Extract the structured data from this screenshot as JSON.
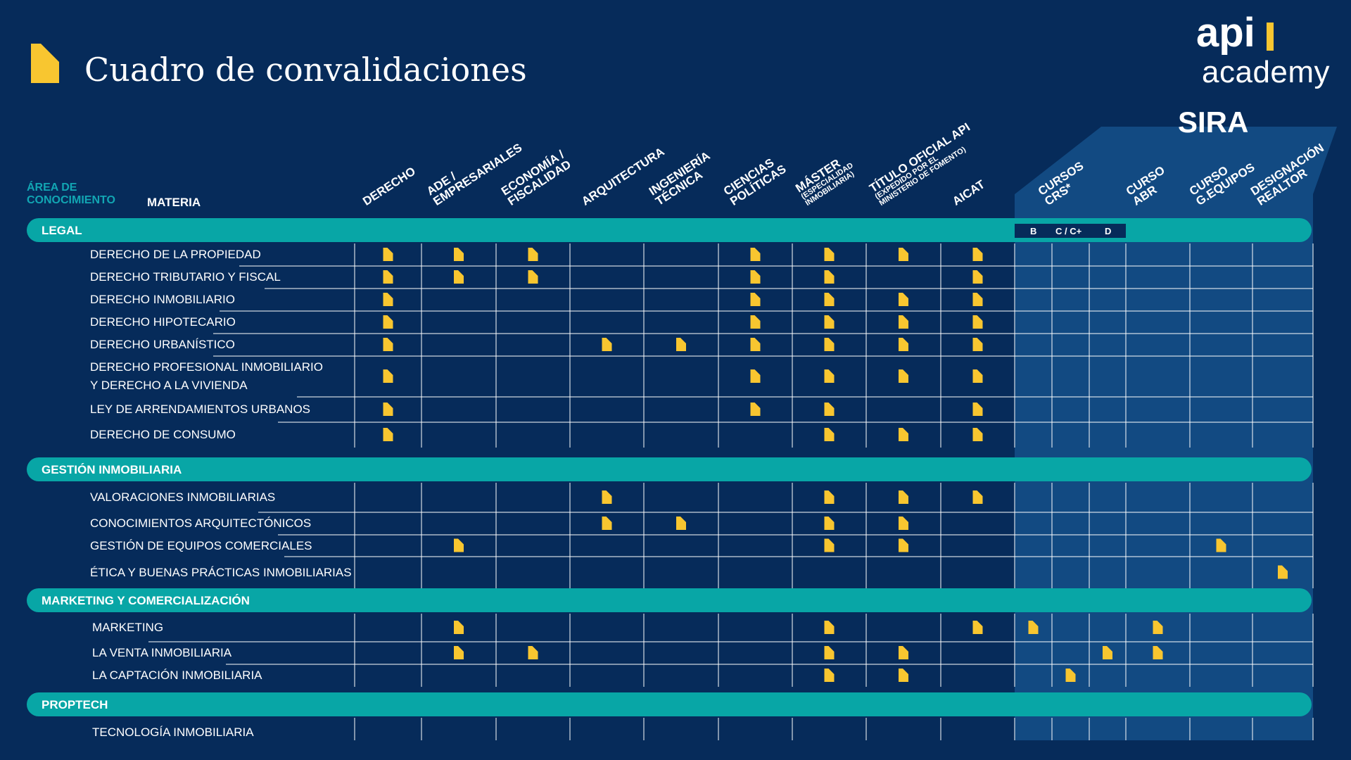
{
  "header": {
    "title": "Cuadro de convalidaciones",
    "logo_brand": "api",
    "logo_sub": "academy"
  },
  "table_header": {
    "area_label_line1": "ÁREA DE",
    "area_label_line2": "CONOCIMIENTO",
    "materia_label": "MATERIA",
    "sira_title": "SIRA",
    "sira_sublabels": [
      "B",
      "C / C+",
      "D"
    ]
  },
  "columns": [
    {
      "key": "derecho",
      "lines": [
        "DERECHO"
      ],
      "sub": []
    },
    {
      "key": "ade",
      "lines": [
        "ADE /",
        "EMPRESARIALES"
      ],
      "sub": []
    },
    {
      "key": "economia",
      "lines": [
        "ECONOMÍA /",
        "FISCALIDAD"
      ],
      "sub": []
    },
    {
      "key": "arquitectura",
      "lines": [
        "ARQUITECTURA"
      ],
      "sub": []
    },
    {
      "key": "ingenieria",
      "lines": [
        "INGENIERÍA",
        "TÉCNICA"
      ],
      "sub": []
    },
    {
      "key": "ciencias",
      "lines": [
        "CIENCIAS",
        "POLÍTICAS"
      ],
      "sub": []
    },
    {
      "key": "master",
      "lines": [
        "MÁSTER"
      ],
      "sub": [
        "(ESPECIALIDAD",
        "INMOBILIARIA)"
      ]
    },
    {
      "key": "titulo",
      "lines": [
        "TÍTULO OFICIAL API"
      ],
      "sub": [
        "(EXPEDIDO POR EL",
        "MINISTERIO DE FOMENTO)"
      ]
    },
    {
      "key": "aicat",
      "lines": [
        "AICAT"
      ],
      "sub": []
    },
    {
      "key": "crs",
      "lines": [
        "CURSOS",
        "CRS*"
      ],
      "sub": []
    },
    {
      "key": "abr",
      "lines": [
        "CURSO",
        "ABR"
      ],
      "sub": []
    },
    {
      "key": "gequipos",
      "lines": [
        "CURSO",
        "G.EQUIPOS"
      ],
      "sub": []
    },
    {
      "key": "realtor",
      "lines": [
        "DESIGNACIÓN",
        "REALTOR"
      ],
      "sub": []
    }
  ],
  "sections": [
    {
      "name": "LEGAL",
      "rows": [
        {
          "label": [
            "DERECHO DE LA PROPIEDAD"
          ],
          "marks": [
            "derecho",
            "ade",
            "economia",
            "ciencias",
            "master",
            "titulo",
            "aicat"
          ]
        },
        {
          "label": [
            "DERECHO TRIBUTARIO Y FISCAL"
          ],
          "marks": [
            "derecho",
            "ade",
            "economia",
            "ciencias",
            "master",
            "aicat"
          ]
        },
        {
          "label": [
            "DERECHO INMOBILIARIO"
          ],
          "marks": [
            "derecho",
            "ciencias",
            "master",
            "titulo",
            "aicat"
          ]
        },
        {
          "label": [
            "DERECHO HIPOTECARIO"
          ],
          "marks": [
            "derecho",
            "ciencias",
            "master",
            "titulo",
            "aicat"
          ]
        },
        {
          "label": [
            "DERECHO URBANÍSTICO"
          ],
          "marks": [
            "derecho",
            "arquitectura",
            "ingenieria",
            "ciencias",
            "master",
            "titulo",
            "aicat"
          ]
        },
        {
          "label": [
            "DERECHO PROFESIONAL INMOBILIARIO",
            "Y DERECHO A LA VIVIENDA"
          ],
          "marks": [
            "derecho",
            "ciencias",
            "master",
            "titulo",
            "aicat"
          ]
        },
        {
          "label": [
            "LEY DE ARRENDAMIENTOS URBANOS"
          ],
          "marks": [
            "derecho",
            "ciencias",
            "master",
            "aicat"
          ]
        },
        {
          "label": [
            "DERECHO DE CONSUMO"
          ],
          "marks": [
            "derecho",
            "master",
            "titulo",
            "aicat"
          ]
        }
      ]
    },
    {
      "name": "GESTIÓN INMOBILIARIA",
      "rows": [
        {
          "label": [
            "VALORACIONES INMOBILIARIAS"
          ],
          "marks": [
            "arquitectura",
            "master",
            "titulo",
            "aicat"
          ]
        },
        {
          "label": [
            "CONOCIMIENTOS ARQUITECTÓNICOS"
          ],
          "marks": [
            "arquitectura",
            "ingenieria",
            "master",
            "titulo"
          ]
        },
        {
          "label": [
            "GESTIÓN DE EQUIPOS COMERCIALES"
          ],
          "marks": [
            "ade",
            "master",
            "titulo",
            "gequipos"
          ]
        },
        {
          "label": [
            "ÉTICA Y BUENAS PRÁCTICAS INMOBILIARIAS"
          ],
          "marks": [
            "realtor"
          ]
        }
      ]
    },
    {
      "name": "MARKETING Y COMERCIALIZACIÓN",
      "rows": [
        {
          "label": [
            "MARKETING"
          ],
          "marks": [
            "ade",
            "master",
            "aicat",
            "crs_b",
            "abr"
          ]
        },
        {
          "label": [
            "LA VENTA INMOBILIARIA"
          ],
          "marks": [
            "ade",
            "economia",
            "master",
            "titulo",
            "crs_d",
            "abr"
          ]
        },
        {
          "label": [
            "LA CAPTACIÓN INMOBILIARIA"
          ],
          "marks": [
            "master",
            "titulo",
            "crs_c"
          ]
        }
      ]
    },
    {
      "name": "PROPTECH",
      "rows": [
        {
          "label": [
            "TECNOLOGÍA INMOBILIARIA"
          ],
          "marks": []
        }
      ]
    }
  ],
  "colors": {
    "background": "#062b5a",
    "sira_panel": "#124a82",
    "section_band": "#08a6a6",
    "mark": "#f8c630",
    "area_label": "#12a6b3"
  },
  "icons": {
    "mark": "folded-corner-document-icon",
    "title_mark": "folded-corner-document-icon"
  }
}
